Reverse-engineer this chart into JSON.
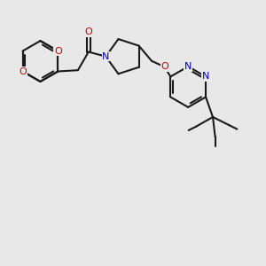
{
  "bg_color": "#e8e8e8",
  "bond_color": "#1a1a1a",
  "oxygen_color": "#cc0000",
  "nitrogen_color": "#0000cc",
  "lw": 1.5,
  "fig_width": 3.0,
  "fig_height": 3.0,
  "dpi": 100,
  "xlim": [
    0,
    10
  ],
  "ylim": [
    -1,
    9
  ]
}
